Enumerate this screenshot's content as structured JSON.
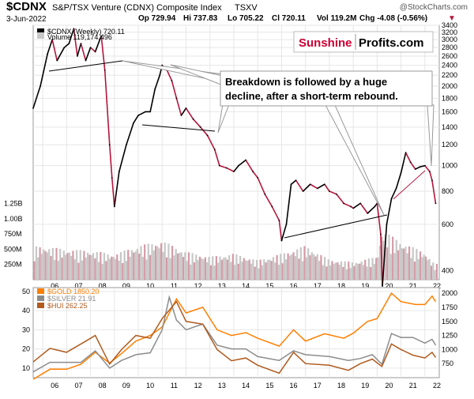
{
  "header": {
    "symbol": "$CDNX",
    "name": "S&P/TSX Venture (CDNX) Composite Index",
    "exchange": "TSXV",
    "source": "@StockCharts.com",
    "date": "3-Jun-2022",
    "open": "Op 729.94",
    "high": "Hi 737.83",
    "low": "Lo 705.22",
    "close": "Cl 720.11",
    "volume": "Vol 119.2M",
    "change": "Chg -4.08 (-0.56%)",
    "change_marker": "▼"
  },
  "watermark": {
    "part1": "Sunshine",
    "part2": "Profits.com"
  },
  "annotation": {
    "line1": "Breakdown is followed by a huge",
    "line2": "decline, after a short-term rebound."
  },
  "colors": {
    "cdnx_line": "#000000",
    "cdnx_down": "#b5163c",
    "volume_bar": "#c7c7c7",
    "volume_bar_down": "#d59aa6",
    "gold": "#ff7f00",
    "silver": "#8c8c8c",
    "hui": "#b05a1e",
    "watermark_red": "#cc0033",
    "grid": "#e6e6e6"
  },
  "chart_data": [
    {
      "type": "line",
      "title": "$CDNX (Weekly) 720.11",
      "scale": "log",
      "ylim": [
        370,
        3400
      ],
      "yticks_right": [
        400,
        600,
        800,
        1000,
        1200,
        1400,
        1600,
        1800,
        2000,
        2200,
        2400,
        2600,
        2800,
        3000,
        3200,
        3400
      ],
      "volume_label": "Volume 119,174,496",
      "volume_ticks_left": [
        "250M",
        "500M",
        "750M",
        "1.00B",
        "1.25B"
      ],
      "volume_tick_values": [
        250,
        500,
        750,
        1000,
        1250
      ],
      "xticks": [
        "06",
        "07",
        "08",
        "09",
        "10",
        "11",
        "12",
        "13",
        "14",
        "15",
        "16",
        "17",
        "18",
        "19",
        "20",
        "21",
        "22"
      ],
      "xtick_years": [
        2006,
        2007,
        2008,
        2009,
        2010,
        2011,
        2012,
        2013,
        2014,
        2015,
        2016,
        2017,
        2018,
        2019,
        2020,
        2021,
        2022
      ],
      "x_range": [
        2005.6,
        2022.6
      ],
      "series": [
        {
          "name": "$CDNX (Weekly)",
          "x": [
            2005.6,
            2005.9,
            2006.2,
            2006.4,
            2006.6,
            2006.9,
            2007.1,
            2007.3,
            2007.45,
            2007.6,
            2007.8,
            2008.0,
            2008.2,
            2008.45,
            2008.6,
            2008.8,
            2008.9,
            2009.0,
            2009.2,
            2009.5,
            2009.8,
            2010.0,
            2010.3,
            2010.5,
            2010.7,
            2010.9,
            2011.0,
            2011.2,
            2011.4,
            2011.6,
            2011.8,
            2012.0,
            2012.3,
            2012.6,
            2012.9,
            2013.2,
            2013.4,
            2013.7,
            2014.0,
            2014.2,
            2014.5,
            2014.8,
            2015.0,
            2015.3,
            2015.6,
            2015.9,
            2016.0,
            2016.2,
            2016.4,
            2016.6,
            2016.9,
            2017.2,
            2017.5,
            2017.8,
            2018.0,
            2018.3,
            2018.6,
            2018.9,
            2019.0,
            2019.3,
            2019.6,
            2019.9,
            2020.0,
            2020.15,
            2020.22,
            2020.4,
            2020.6,
            2020.8,
            2021.0,
            2021.2,
            2021.4,
            2021.6,
            2021.8,
            2022.0,
            2022.2,
            2022.3,
            2022.45
          ],
          "y": [
            1650,
            2000,
            2650,
            3000,
            2500,
            2800,
            2900,
            3300,
            2600,
            2900,
            2500,
            2800,
            2700,
            3100,
            2300,
            1200,
            900,
            700,
            950,
            1200,
            1450,
            1550,
            1600,
            1600,
            1950,
            2200,
            2400,
            2300,
            2100,
            1800,
            1550,
            1650,
            1500,
            1400,
            1300,
            1150,
            1000,
            980,
            950,
            1000,
            1050,
            950,
            900,
            780,
            700,
            620,
            520,
            600,
            850,
            880,
            800,
            850,
            820,
            850,
            800,
            780,
            720,
            700,
            690,
            720,
            660,
            700,
            720,
            550,
            350,
            600,
            750,
            820,
            940,
            1120,
            1030,
            970,
            990,
            1000,
            950,
            880,
            720
          ]
        },
        {
          "name": "Volume",
          "x": [
            2006.0,
            2007.0,
            2008.0,
            2009.0,
            2010.0,
            2011.0,
            2012.0,
            2013.0,
            2014.0,
            2015.0,
            2016.0,
            2017.0,
            2018.0,
            2019.0,
            2020.0,
            2020.2,
            2021.0,
            2022.0,
            2022.4
          ],
          "values": [
            550,
            500,
            480,
            420,
            560,
            640,
            460,
            380,
            430,
            320,
            430,
            560,
            330,
            290,
            380,
            820,
            620,
            450,
            260
          ]
        }
      ]
    },
    {
      "type": "line",
      "xticks": [
        "06",
        "07",
        "08",
        "09",
        "10",
        "11",
        "12",
        "13",
        "14",
        "15",
        "16",
        "17",
        "18",
        "19",
        "20",
        "21",
        "22"
      ],
      "xtick_years": [
        2006,
        2007,
        2008,
        2009,
        2010,
        2011,
        2012,
        2013,
        2014,
        2015,
        2016,
        2017,
        2018,
        2019,
        2020,
        2021,
        2022
      ],
      "x_range": [
        2005.6,
        2022.6
      ],
      "yticks_left": [
        10,
        20,
        30,
        40,
        50
      ],
      "ylim_left": [
        5,
        52
      ],
      "yticks_right": [
        750,
        1000,
        1250,
        1500,
        1750,
        2000
      ],
      "ylim_right": [
        500,
        2100
      ],
      "legend": [
        {
          "label": "$GOLD 1850.20",
          "color": "#ff7f00"
        },
        {
          "label": "$SILVER 21.91",
          "color": "#8c8c8c"
        },
        {
          "label": "$HUI 262.25",
          "color": "#b05a1e"
        }
      ],
      "series": [
        {
          "name": "$GOLD",
          "axis": "right",
          "x": [
            2005.6,
            2006.3,
            2007.0,
            2007.6,
            2008.2,
            2008.8,
            2009.3,
            2009.9,
            2010.5,
            2011.0,
            2011.6,
            2012.0,
            2012.7,
            2013.3,
            2013.9,
            2014.5,
            2015.0,
            2015.9,
            2016.5,
            2017.0,
            2017.8,
            2018.6,
            2019.0,
            2019.6,
            2020.0,
            2020.6,
            2021.0,
            2021.6,
            2022.0,
            2022.3,
            2022.45
          ],
          "y": [
            470,
            650,
            650,
            740,
            950,
            760,
            930,
            1150,
            1250,
            1400,
            1900,
            1650,
            1750,
            1350,
            1250,
            1300,
            1200,
            1060,
            1350,
            1150,
            1280,
            1200,
            1290,
            1500,
            1550,
            2000,
            1850,
            1800,
            1800,
            1950,
            1850
          ]
        },
        {
          "name": "$SILVER",
          "axis": "left",
          "x": [
            2005.6,
            2006.3,
            2007.0,
            2007.6,
            2008.2,
            2008.8,
            2009.3,
            2009.9,
            2010.5,
            2011.0,
            2011.3,
            2011.6,
            2012.0,
            2012.7,
            2013.3,
            2013.9,
            2014.5,
            2015.0,
            2015.9,
            2016.5,
            2017.0,
            2018.0,
            2018.8,
            2019.3,
            2019.8,
            2020.2,
            2020.6,
            2021.0,
            2021.5,
            2022.0,
            2022.3,
            2022.45
          ],
          "y": [
            8,
            13,
            13,
            13,
            19,
            10,
            14,
            17,
            18,
            30,
            47,
            35,
            30,
            33,
            22,
            20,
            20,
            16,
            14,
            19,
            17,
            16,
            14,
            15,
            17,
            12,
            28,
            26,
            26,
            23,
            25,
            22
          ]
        },
        {
          "name": "$HUI",
          "axis": "right",
          "x": [
            2005.6,
            2006.3,
            2007.0,
            2007.6,
            2008.2,
            2008.8,
            2009.3,
            2009.9,
            2010.5,
            2011.0,
            2011.6,
            2012.0,
            2012.7,
            2013.3,
            2013.9,
            2014.5,
            2015.0,
            2015.9,
            2016.5,
            2017.0,
            2018.0,
            2018.8,
            2019.3,
            2019.8,
            2020.2,
            2020.6,
            2021.0,
            2021.5,
            2022.0,
            2022.3,
            2022.45
          ],
          "y": [
            780,
            1020,
            950,
            1100,
            1250,
            740,
            1000,
            1250,
            1200,
            1550,
            1850,
            1500,
            1450,
            1000,
            800,
            850,
            720,
            580,
            950,
            750,
            720,
            630,
            750,
            830,
            700,
            1100,
            1000,
            900,
            850,
            950,
            860
          ]
        }
      ]
    }
  ]
}
